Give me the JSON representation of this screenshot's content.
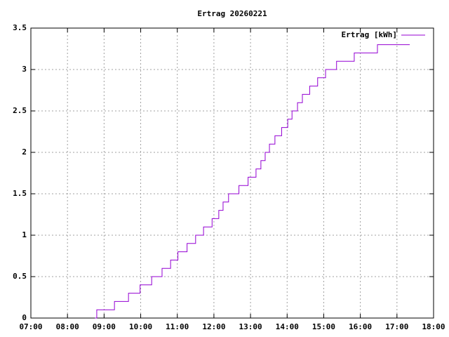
{
  "chart_data": {
    "type": "line",
    "step": true,
    "title": "Ertrag 20260221",
    "x": [
      "08:45",
      "08:48",
      "09:17",
      "09:40",
      "09:59",
      "10:18",
      "10:35",
      "10:49",
      "11:01",
      "11:16",
      "11:30",
      "11:43",
      "11:57",
      "12:08",
      "12:15",
      "12:24",
      "12:41",
      "12:56",
      "13:09",
      "13:17",
      "13:24",
      "13:31",
      "13:40",
      "13:51",
      "14:01",
      "14:08",
      "14:17",
      "14:25",
      "14:37",
      "14:50",
      "15:03",
      "15:21",
      "15:50",
      "16:28",
      "17:21"
    ],
    "series": [
      {
        "name": "Ertrag [kWh]",
        "color": "#9400d3",
        "values": [
          0,
          0.1,
          0.2,
          0.3,
          0.4,
          0.5,
          0.6,
          0.7,
          0.8,
          0.9,
          1.0,
          1.1,
          1.2,
          1.3,
          1.4,
          1.5,
          1.6,
          1.7,
          1.8,
          1.9,
          2.0,
          2.1,
          2.2,
          2.3,
          2.4,
          2.5,
          2.6,
          2.7,
          2.8,
          2.9,
          3.0,
          3.1,
          3.2,
          3.3,
          3.3
        ]
      }
    ],
    "xlim": [
      "07:00",
      "18:00"
    ],
    "xticks": [
      "07:00",
      "08:00",
      "09:00",
      "10:00",
      "11:00",
      "12:00",
      "13:00",
      "14:00",
      "15:00",
      "16:00",
      "17:00",
      "18:00"
    ],
    "ylim": [
      0,
      3.5
    ],
    "yticks": [
      0,
      0.5,
      1,
      1.5,
      2,
      2.5,
      3,
      3.5
    ],
    "grid": true,
    "legend": "top-right"
  }
}
